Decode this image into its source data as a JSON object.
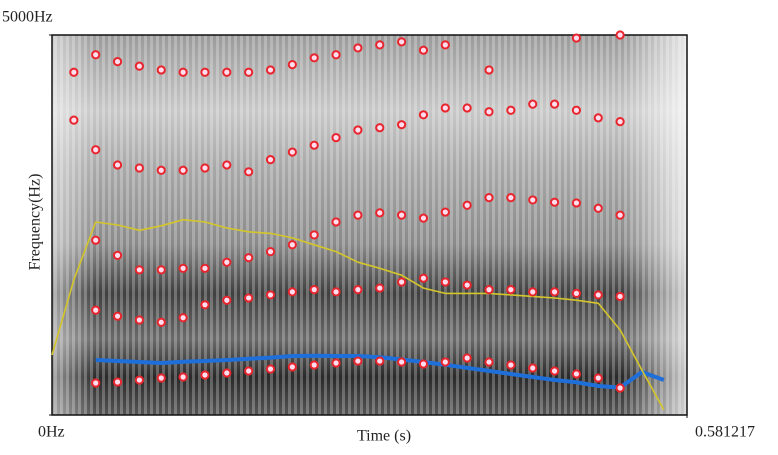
{
  "chart_data": {
    "type": "spectrogram",
    "xlabel": "Time (s)",
    "ylabel": "Frequency(Hz)",
    "xlim": [
      0,
      0.581217
    ],
    "ylim": [
      0,
      5000
    ],
    "xticks": [
      0.581217
    ],
    "yticks": [
      {
        "value": 5000,
        "label": "5000Hz"
      },
      {
        "value": 0,
        "label": "0Hz"
      }
    ],
    "x": [
      0,
      0.02,
      0.04,
      0.06,
      0.08,
      0.1,
      0.12,
      0.14,
      0.16,
      0.18,
      0.2,
      0.22,
      0.24,
      0.26,
      0.28,
      0.3,
      0.32,
      0.34,
      0.36,
      0.38,
      0.4,
      0.42,
      0.44,
      0.46,
      0.48,
      0.5,
      0.52,
      0.54,
      0.56
    ],
    "series": [
      {
        "kind": "points",
        "color": "#e8252c",
        "values": [
          null,
          null,
          421,
          434,
          460,
          487,
          500,
          526,
          553,
          579,
          605,
          632,
          658,
          684,
          710,
          710,
          697,
          671,
          697,
          750,
          697,
          658,
          618,
          579,
          540,
          487,
          355,
          null,
          null
        ]
      },
      {
        "kind": "points",
        "color": "#e8252c",
        "values": [
          null,
          null,
          1380,
          1300,
          1250,
          1220,
          1280,
          1450,
          1510,
          1540,
          1580,
          1620,
          1650,
          1620,
          1650,
          1670,
          1750,
          1800,
          1750,
          1710,
          1650,
          1650,
          1620,
          1620,
          1600,
          1580,
          1560,
          null,
          null
        ]
      },
      {
        "kind": "points",
        "color": "#e8252c",
        "values": [
          null,
          null,
          2300,
          2100,
          1910,
          1910,
          1930,
          1930,
          2010,
          2070,
          2150,
          2240,
          2370,
          2540,
          2630,
          2660,
          2630,
          2590,
          2670,
          2760,
          2860,
          2860,
          2830,
          2800,
          2790,
          2720,
          2630,
          null,
          null
        ]
      },
      {
        "kind": "points",
        "color": "#e8252c",
        "values": [
          null,
          3880,
          3490,
          3290,
          3250,
          3220,
          3220,
          3250,
          3290,
          3200,
          3360,
          3460,
          3550,
          3650,
          3750,
          3780,
          3820,
          3950,
          4040,
          4040,
          3990,
          4010,
          4090,
          4090,
          4010,
          3910,
          3860,
          null,
          null
        ]
      },
      {
        "kind": "points",
        "color": "#e8252c",
        "values": [
          null,
          4510,
          4740,
          4650,
          4590,
          4540,
          4510,
          4510,
          4510,
          4510,
          4540,
          4610,
          4700,
          4740,
          4830,
          4870,
          4910,
          4800,
          4870,
          null,
          4540,
          null,
          null,
          null,
          4960,
          null,
          5000,
          null,
          null
        ]
      },
      {
        "kind": "line",
        "color": "#1e6fd9",
        "values": [
          null,
          null,
          724,
          710,
          697,
          684,
          700,
          710,
          724,
          740,
          755,
          776,
          780,
          776,
          776,
          760,
          730,
          697,
          660,
          620,
          580,
          540,
          500,
          460,
          430,
          382,
          360,
          566,
          460
        ]
      },
      {
        "kind": "line",
        "color": "#d4c62a",
        "values": [
          790,
          1780,
          2540,
          2500,
          2430,
          2490,
          2570,
          2540,
          2460,
          2410,
          2390,
          2330,
          2240,
          2150,
          2010,
          1930,
          1840,
          1670,
          1600,
          1600,
          1600,
          1580,
          1560,
          1540,
          1510,
          1470,
          1120,
          590,
          70
        ]
      }
    ]
  }
}
